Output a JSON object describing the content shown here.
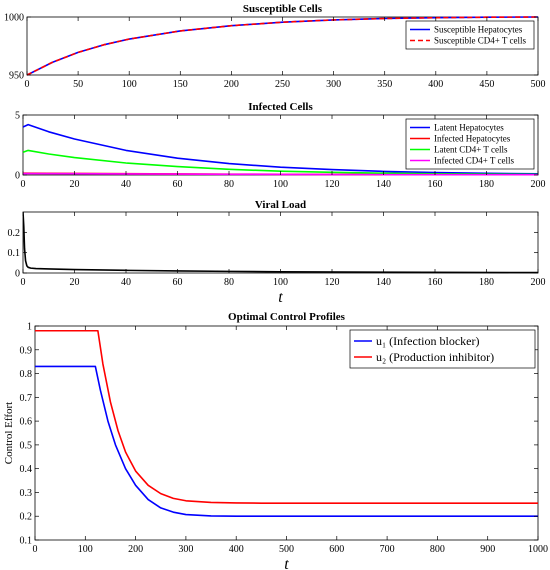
{
  "chart_data": [
    {
      "type": "line",
      "title": "Susceptible Cells",
      "xlabel": "",
      "ylabel": "",
      "xlim": [
        0,
        500
      ],
      "ylim": [
        950,
        1000
      ],
      "xticks": [
        0,
        50,
        100,
        150,
        200,
        250,
        300,
        350,
        400,
        450,
        500
      ],
      "yticks": [
        950,
        1000
      ],
      "legend": "top-right",
      "legend_size": "small",
      "grid": false,
      "series": [
        {
          "name": "Susceptible Hepatocytes",
          "color": "#0000ff",
          "dash": "solid",
          "x": [
            0,
            25,
            50,
            75,
            100,
            150,
            200,
            250,
            300,
            350,
            400,
            450,
            500
          ],
          "y": [
            950,
            961,
            969.5,
            976,
            981,
            988,
            992.5,
            995.5,
            997.5,
            998.7,
            999.4,
            999.8,
            1000
          ]
        },
        {
          "name": "Susceptible CD4+ T cells",
          "color": "#ff0000",
          "dash": "dashed",
          "x": [
            0,
            25,
            50,
            75,
            100,
            150,
            200,
            250,
            300,
            350,
            400,
            450,
            500
          ],
          "y": [
            950,
            961,
            969.5,
            976,
            981,
            988,
            992.5,
            995.5,
            997.5,
            998.7,
            999.4,
            999.8,
            1000
          ]
        }
      ]
    },
    {
      "type": "line",
      "title": "Infected Cells",
      "xlabel": "",
      "ylabel": "",
      "xlim": [
        0,
        200
      ],
      "ylim": [
        0,
        5
      ],
      "xticks": [
        0,
        20,
        40,
        60,
        80,
        100,
        120,
        140,
        160,
        180,
        200
      ],
      "yticks": [
        0,
        5
      ],
      "legend": "top-right",
      "legend_size": "small",
      "grid": false,
      "series": [
        {
          "name": "Latent Hepatocytes",
          "color": "#0000ff",
          "dash": "solid",
          "x": [
            0,
            2,
            10,
            20,
            40,
            60,
            80,
            100,
            120,
            140,
            160,
            180,
            200
          ],
          "y": [
            4.0,
            4.2,
            3.6,
            3.0,
            2.05,
            1.4,
            0.95,
            0.65,
            0.45,
            0.3,
            0.2,
            0.14,
            0.1
          ]
        },
        {
          "name": "Infected Hepatocytes",
          "color": "#ff0000",
          "dash": "solid",
          "x": [
            0,
            20,
            40,
            60,
            80,
            100,
            120,
            140,
            160,
            180,
            200
          ],
          "y": [
            0.15,
            0.13,
            0.11,
            0.09,
            0.07,
            0.06,
            0.05,
            0.04,
            0.03,
            0.03,
            0.02
          ]
        },
        {
          "name": "Latent CD4+ T cells",
          "color": "#00ff00",
          "dash": "solid",
          "x": [
            0,
            2,
            10,
            20,
            40,
            60,
            80,
            100,
            120,
            140,
            160,
            180,
            200
          ],
          "y": [
            1.9,
            2.05,
            1.75,
            1.45,
            1.0,
            0.7,
            0.47,
            0.32,
            0.22,
            0.15,
            0.1,
            0.07,
            0.05
          ]
        },
        {
          "name": "Infected CD4+ T cells",
          "color": "#ff00ff",
          "dash": "solid",
          "x": [
            0,
            20,
            40,
            60,
            80,
            100,
            120,
            140,
            160,
            180,
            200
          ],
          "y": [
            0.12,
            0.11,
            0.09,
            0.08,
            0.06,
            0.05,
            0.04,
            0.03,
            0.03,
            0.02,
            0.02
          ]
        }
      ]
    },
    {
      "type": "line",
      "title": "Viral Load",
      "xlabel": "t",
      "ylabel": "",
      "xlim": [
        0,
        200
      ],
      "ylim": [
        0,
        0.3
      ],
      "xticks": [
        0,
        20,
        40,
        60,
        80,
        100,
        120,
        140,
        160,
        180,
        200
      ],
      "yticks": [
        0,
        0.1,
        0.2
      ],
      "legend": "none",
      "grid": false,
      "series": [
        {
          "color": "#000000",
          "dash": "solid",
          "x": [
            0,
            0.3,
            0.6,
            1,
            1.5,
            2,
            3,
            5,
            10,
            20,
            40,
            60,
            80,
            100,
            140,
            200
          ],
          "y": [
            0.3,
            0.23,
            0.12,
            0.06,
            0.035,
            0.028,
            0.024,
            0.022,
            0.02,
            0.017,
            0.013,
            0.01,
            0.008,
            0.006,
            0.004,
            0.002
          ]
        }
      ]
    },
    {
      "type": "line",
      "title": "Optimal Control Profiles",
      "xlabel": "t",
      "ylabel": "Control Effort",
      "xlim": [
        0,
        1000
      ],
      "ylim": [
        0.1,
        1
      ],
      "xticks": [
        0,
        100,
        200,
        300,
        400,
        500,
        600,
        700,
        800,
        900,
        1000
      ],
      "yticks": [
        0.1,
        0.2,
        0.3,
        0.4,
        0.5,
        0.6,
        0.7,
        0.8,
        0.9,
        1
      ],
      "legend": "top-right",
      "legend_size": "large",
      "grid": false,
      "series": [
        {
          "name": "u₁ (Infection blocker)",
          "color": "#0000ff",
          "dash": "solid",
          "x": [
            0,
            120,
            130,
            145,
            160,
            180,
            200,
            225,
            250,
            275,
            300,
            350,
            400,
            450,
            500,
            1000
          ],
          "y": [
            0.83,
            0.83,
            0.73,
            0.6,
            0.5,
            0.4,
            0.33,
            0.27,
            0.235,
            0.217,
            0.207,
            0.201,
            0.2,
            0.2,
            0.2,
            0.2
          ]
        },
        {
          "name": "u₂ (Production inhibitor)",
          "color": "#ff0000",
          "dash": "solid",
          "x": [
            0,
            125,
            135,
            150,
            165,
            180,
            200,
            225,
            250,
            275,
            300,
            350,
            400,
            450,
            500,
            1000
          ],
          "y": [
            0.98,
            0.98,
            0.84,
            0.68,
            0.56,
            0.47,
            0.39,
            0.33,
            0.295,
            0.275,
            0.265,
            0.258,
            0.256,
            0.255,
            0.255,
            0.255
          ]
        }
      ]
    }
  ]
}
